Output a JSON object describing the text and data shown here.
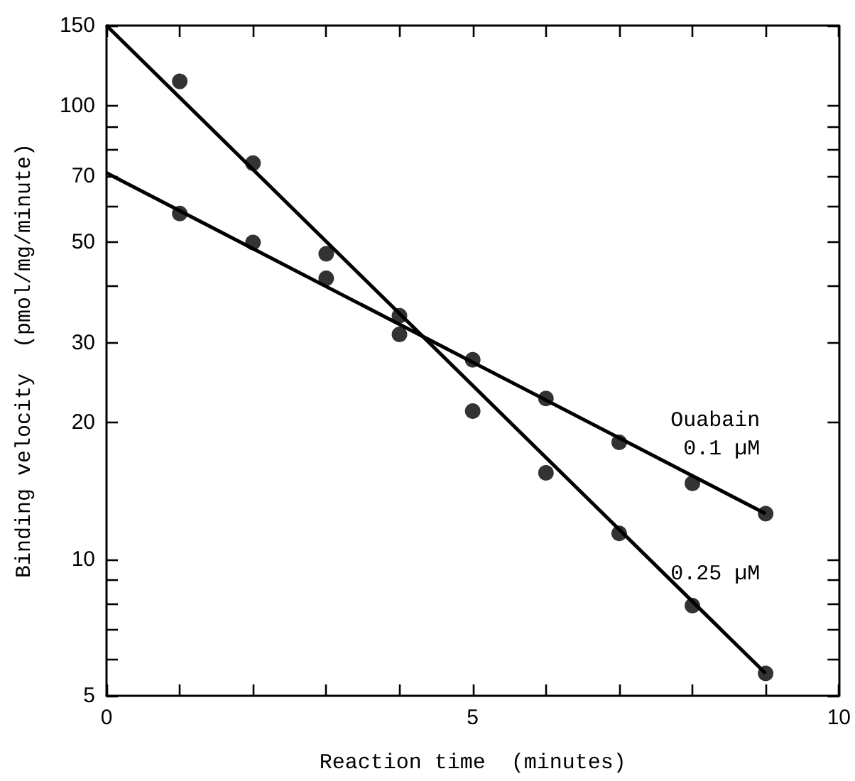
{
  "chart_data": {
    "type": "scatter",
    "xlabel": "Reaction time  (minutes)",
    "ylabel": "Binding velocity  (pmol/mg/minute)",
    "log": "y",
    "grid": false,
    "legend": false,
    "marker": "circle",
    "xlim": [
      0,
      10
    ],
    "xticks": [
      0,
      {
        "value": 1,
        "label": null
      },
      {
        "value": 2,
        "label": null
      },
      {
        "value": 3,
        "label": null
      },
      {
        "value": 4,
        "label": null
      },
      5,
      {
        "value": 6,
        "label": null
      },
      {
        "value": 7,
        "label": null
      },
      {
        "value": 8,
        "label": null
      },
      {
        "value": 9,
        "label": null
      },
      10
    ],
    "ylim": [
      5,
      150
    ],
    "yticks": [
      5,
      {
        "value": 6,
        "label": null
      },
      {
        "value": 7,
        "label": null
      },
      {
        "value": 8,
        "label": null
      },
      {
        "value": 9,
        "label": null
      },
      10,
      20,
      30,
      {
        "value": 40,
        "label": null
      },
      50,
      {
        "value": 60,
        "label": null
      },
      70,
      {
        "value": 80,
        "label": null
      },
      {
        "value": 90,
        "label": null
      },
      100,
      150
    ],
    "series": [
      {
        "color": "#000000",
        "x": [
          1,
          2,
          3,
          4,
          5,
          6,
          7,
          8,
          9
        ],
        "values": [
          113,
          74.6,
          47.1,
          34.4,
          21.2,
          15.5,
          11.4,
          7.9,
          5.6
        ]
      },
      {
        "color": "#000000",
        "x": [
          1,
          2,
          3,
          4,
          5,
          6,
          7,
          8,
          9
        ],
        "values": [
          57.8,
          49.9,
          41.6,
          31.3,
          27.5,
          22.6,
          18.1,
          14.7,
          12.6
        ]
      },
      {
        "type": "line",
        "name": "0.25 µM",
        "color": "#000000",
        "marker": "none",
        "x": [
          0,
          9
        ],
        "values": [
          150,
          5.6
        ]
      },
      {
        "type": "line",
        "name": "Ouabain 0.1 µM",
        "color": "#000000",
        "marker": "none",
        "x": [
          0,
          9
        ],
        "values": [
          71,
          12.6
        ]
      }
    ]
  }
}
